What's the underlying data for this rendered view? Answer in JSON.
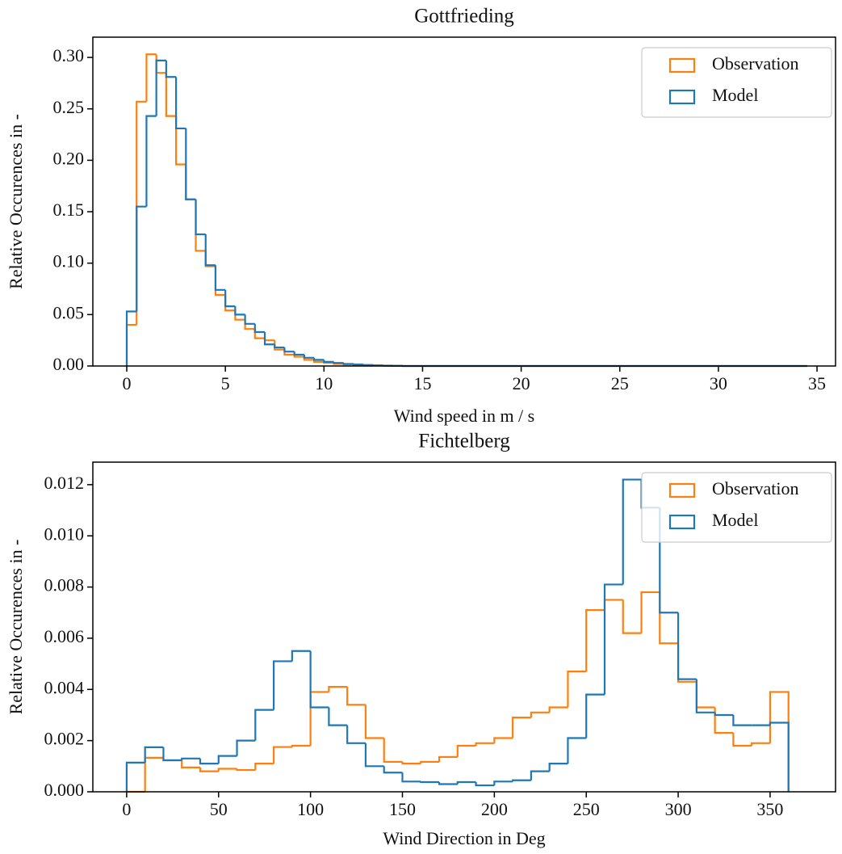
{
  "chart_data": [
    {
      "type": "histogram",
      "title": "Gottfrieding",
      "xlabel": "Wind speed in m / s",
      "ylabel": "Relative Occurences in -",
      "bins": [
        0,
        0.5,
        1,
        1.5,
        2,
        2.5,
        3,
        3.5,
        4,
        4.5,
        5,
        5.5,
        6,
        6.5,
        7,
        7.5,
        8,
        8.5,
        9,
        9.5,
        10,
        10.5,
        11,
        11.5,
        12,
        12.5,
        13,
        13.5,
        14,
        34.5
      ],
      "series": [
        {
          "name": "Observation",
          "color": "#ff7f0e",
          "values": [
            0.04,
            0.257,
            0.303,
            0.285,
            0.243,
            0.196,
            0.162,
            0.112,
            0.097,
            0.069,
            0.054,
            0.045,
            0.036,
            0.027,
            0.025,
            0.016,
            0.011,
            0.009,
            0.006,
            0.004,
            0.003,
            0.002,
            0.0015,
            0.001,
            0.0008,
            0.0008,
            0.0004,
            0.0002,
            0
          ]
        },
        {
          "name": "Model",
          "color": "#1f77b4",
          "values": [
            0.053,
            0.155,
            0.243,
            0.297,
            0.281,
            0.231,
            0.162,
            0.128,
            0.098,
            0.074,
            0.058,
            0.05,
            0.041,
            0.033,
            0.021,
            0.018,
            0.014,
            0.011,
            0.008,
            0.006,
            0.004,
            0.003,
            0.002,
            0.0015,
            0.001,
            0.0005,
            0.0003,
            0.0002,
            0
          ]
        }
      ],
      "xlim": [
        -1.72,
        35.94
      ],
      "ylim": [
        0,
        0.3197
      ],
      "xticks": [
        0,
        5,
        10,
        15,
        20,
        25,
        30,
        35
      ],
      "yticks": [
        {
          "value": 0,
          "label": "0.00"
        },
        0.05,
        {
          "value": 0.1,
          "label": "0.10"
        },
        {
          "value": 0.15,
          "label": "0.15"
        },
        {
          "value": 0.2,
          "label": "0.20"
        },
        0.25,
        {
          "value": 0.3,
          "label": "0.30"
        }
      ],
      "legend": "upper right"
    },
    {
      "type": "histogram",
      "title": "Fichtelberg",
      "xlabel": "Wind Direction in Deg",
      "ylabel": "Relative Occurences in -",
      "bins": [
        0,
        10,
        20,
        30,
        40,
        50,
        60,
        70,
        80,
        90,
        100,
        110,
        120,
        130,
        140,
        150,
        160,
        170,
        180,
        190,
        200,
        210,
        220,
        230,
        240,
        250,
        260,
        270,
        280,
        290,
        300,
        310,
        320,
        330,
        340,
        350,
        360
      ],
      "series": [
        {
          "name": "Observation",
          "color": "#ff7f0e",
          "values": [
            0,
            0.00133,
            0.00123,
            0.00095,
            0.0008,
            0.0009,
            0.00085,
            0.0011,
            0.00175,
            0.0018,
            0.0039,
            0.0041,
            0.0034,
            0.0021,
            0.00117,
            0.0011,
            0.00117,
            0.00136,
            0.0018,
            0.0019,
            0.0021,
            0.0029,
            0.0031,
            0.0033,
            0.0047,
            0.0071,
            0.0075,
            0.0062,
            0.0078,
            0.0058,
            0.0043,
            0.0033,
            0.0023,
            0.0018,
            0.0019,
            0.0039
          ]
        },
        {
          "name": "Model",
          "color": "#1f77b4",
          "values": [
            0.00114,
            0.00174,
            0.00123,
            0.0013,
            0.0011,
            0.0014,
            0.002,
            0.0032,
            0.0051,
            0.0055,
            0.0033,
            0.0026,
            0.0019,
            0.001,
            0.00075,
            0.0004,
            0.00038,
            0.0003,
            0.00038,
            0.00025,
            0.0004,
            0.00045,
            0.0008,
            0.0011,
            0.0021,
            0.0038,
            0.0081,
            0.0122,
            0.0111,
            0.007,
            0.0044,
            0.0031,
            0.003,
            0.0026,
            0.0026,
            0.0027
          ]
        }
      ],
      "xlim": [
        -18.4,
        385.6
      ],
      "ylim": [
        0,
        0.01288
      ],
      "xticks": [
        0,
        50,
        100,
        150,
        200,
        250,
        300,
        350
      ],
      "yticks": [
        {
          "value": 0,
          "label": "0.000"
        },
        0.002,
        0.004,
        0.006,
        0.008,
        {
          "value": 0.01,
          "label": "0.010"
        },
        0.012
      ],
      "legend": "upper right"
    }
  ]
}
